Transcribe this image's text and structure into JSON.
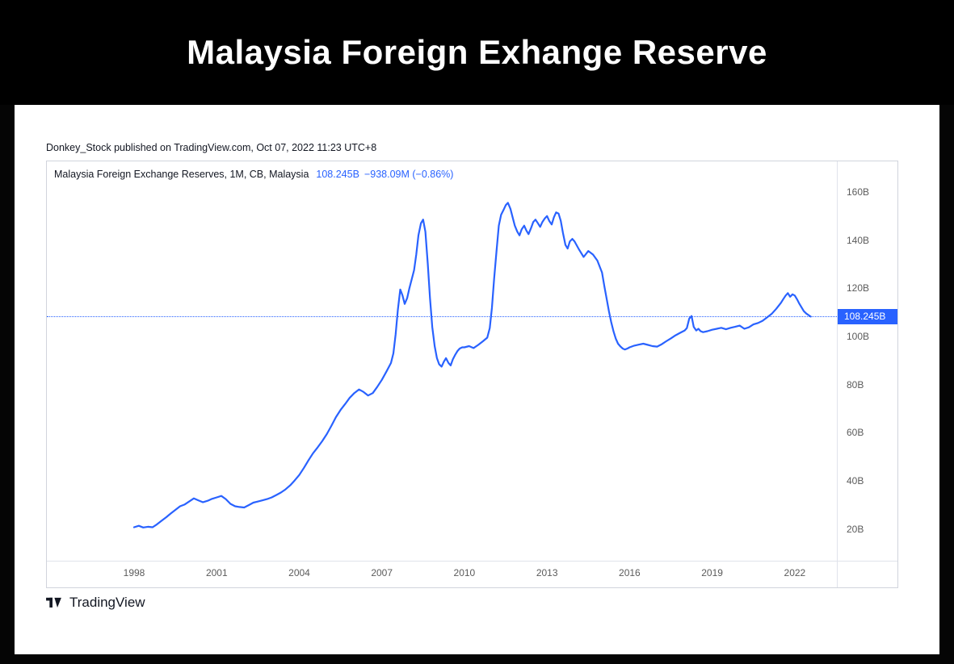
{
  "banner": {
    "title": "Malaysia Foreign Exhange Reserve"
  },
  "attribution": "Donkey_Stock published on TradingView.com, Oct 07, 2022 11:23 UTC+8",
  "legend": {
    "symbol": "Malaysia Foreign Exchange Reserves, 1M, CB, Malaysia",
    "value": "108.245B",
    "change": "−938.09M (−0.86%)"
  },
  "price_label": "108.245B",
  "footer": {
    "brand": "TradingView"
  },
  "colors": {
    "accent": "#2962FF",
    "line": "#2962FF",
    "banner_bg": "#000000",
    "text": "#131722",
    "axis_text": "#5b5b5b",
    "border": "#d1d4dc",
    "axis_separator": "#e0e3eb",
    "price_tag_bg": "#2962FF",
    "price_tag_text": "#ffffff"
  },
  "chart_data": {
    "type": "line",
    "title": "Malaysia Foreign Exchange Reserves, 1M, CB, Malaysia",
    "legend_position": "top-left",
    "y_axis_side": "right",
    "grid": false,
    "xlim": [
      1994.83,
      2023.53
    ],
    "ylim": [
      6.9,
      172.7
    ],
    "x_ticks": {
      "values": [
        1998,
        2001,
        2004,
        2007,
        2010,
        2013,
        2016,
        2019,
        2022
      ],
      "labels": [
        "1998",
        "2001",
        "2004",
        "2007",
        "2010",
        "2013",
        "2016",
        "2019",
        "2022"
      ]
    },
    "y_ticks": {
      "values": [
        160,
        140,
        120,
        100,
        80,
        60,
        40,
        20
      ],
      "labels": [
        "160B",
        "140B",
        "120B",
        "100B",
        "80B",
        "60B",
        "40B",
        "20B"
      ]
    },
    "last_value": 108.245,
    "last_value_label": "108.245B",
    "series": [
      {
        "name": "Malaysia Foreign Exchange Reserves",
        "points": [
          [
            1998.0,
            20.8
          ],
          [
            1998.17,
            21.4
          ],
          [
            1998.33,
            20.7
          ],
          [
            1998.5,
            21.0
          ],
          [
            1998.67,
            20.8
          ],
          [
            1998.83,
            22.0
          ],
          [
            1999.0,
            23.5
          ],
          [
            1999.17,
            25.0
          ],
          [
            1999.33,
            26.5
          ],
          [
            1999.5,
            28.0
          ],
          [
            1999.67,
            29.5
          ],
          [
            1999.83,
            30.2
          ],
          [
            2000.0,
            31.5
          ],
          [
            2000.17,
            32.8
          ],
          [
            2000.33,
            32.0
          ],
          [
            2000.5,
            31.2
          ],
          [
            2000.67,
            31.8
          ],
          [
            2000.83,
            32.6
          ],
          [
            2001.0,
            33.2
          ],
          [
            2001.17,
            33.8
          ],
          [
            2001.33,
            32.5
          ],
          [
            2001.5,
            30.5
          ],
          [
            2001.67,
            29.5
          ],
          [
            2001.83,
            29.2
          ],
          [
            2002.0,
            29.0
          ],
          [
            2002.17,
            30.0
          ],
          [
            2002.33,
            31.0
          ],
          [
            2002.5,
            31.5
          ],
          [
            2002.67,
            32.0
          ],
          [
            2002.83,
            32.5
          ],
          [
            2003.0,
            33.2
          ],
          [
            2003.17,
            34.2
          ],
          [
            2003.33,
            35.2
          ],
          [
            2003.5,
            36.5
          ],
          [
            2003.67,
            38.2
          ],
          [
            2003.83,
            40.2
          ],
          [
            2004.0,
            42.5
          ],
          [
            2004.17,
            45.5
          ],
          [
            2004.33,
            48.5
          ],
          [
            2004.5,
            51.5
          ],
          [
            2004.67,
            54.0
          ],
          [
            2004.83,
            56.5
          ],
          [
            2005.0,
            59.5
          ],
          [
            2005.17,
            63.0
          ],
          [
            2005.33,
            66.5
          ],
          [
            2005.5,
            69.5
          ],
          [
            2005.67,
            72.0
          ],
          [
            2005.83,
            74.5
          ],
          [
            2006.0,
            76.5
          ],
          [
            2006.17,
            78.0
          ],
          [
            2006.33,
            77.0
          ],
          [
            2006.5,
            75.5
          ],
          [
            2006.67,
            76.5
          ],
          [
            2006.83,
            79.0
          ],
          [
            2007.0,
            82.0
          ],
          [
            2007.17,
            85.5
          ],
          [
            2007.33,
            89.0
          ],
          [
            2007.42,
            93.0
          ],
          [
            2007.5,
            101.0
          ],
          [
            2007.58,
            111.0
          ],
          [
            2007.67,
            119.5
          ],
          [
            2007.75,
            117.0
          ],
          [
            2007.83,
            113.5
          ],
          [
            2007.92,
            116.0
          ],
          [
            2008.0,
            120.0
          ],
          [
            2008.08,
            123.5
          ],
          [
            2008.17,
            127.5
          ],
          [
            2008.25,
            134.0
          ],
          [
            2008.33,
            142.0
          ],
          [
            2008.42,
            147.0
          ],
          [
            2008.5,
            148.5
          ],
          [
            2008.58,
            143.5
          ],
          [
            2008.67,
            130.0
          ],
          [
            2008.75,
            116.0
          ],
          [
            2008.83,
            104.0
          ],
          [
            2008.92,
            96.0
          ],
          [
            2009.0,
            91.0
          ],
          [
            2009.08,
            88.5
          ],
          [
            2009.17,
            87.5
          ],
          [
            2009.25,
            89.5
          ],
          [
            2009.33,
            91.0
          ],
          [
            2009.42,
            89.0
          ],
          [
            2009.5,
            88.0
          ],
          [
            2009.58,
            90.5
          ],
          [
            2009.67,
            92.5
          ],
          [
            2009.75,
            94.0
          ],
          [
            2009.83,
            95.0
          ],
          [
            2009.92,
            95.5
          ],
          [
            2010.0,
            95.5
          ],
          [
            2010.17,
            96.0
          ],
          [
            2010.33,
            95.2
          ],
          [
            2010.5,
            96.5
          ],
          [
            2010.67,
            98.0
          ],
          [
            2010.83,
            99.5
          ],
          [
            2010.92,
            103.5
          ],
          [
            2011.0,
            112.0
          ],
          [
            2011.08,
            124.0
          ],
          [
            2011.17,
            136.0
          ],
          [
            2011.25,
            146.0
          ],
          [
            2011.33,
            150.5
          ],
          [
            2011.42,
            152.5
          ],
          [
            2011.5,
            154.5
          ],
          [
            2011.58,
            155.5
          ],
          [
            2011.67,
            153.0
          ],
          [
            2011.75,
            149.5
          ],
          [
            2011.83,
            146.0
          ],
          [
            2011.92,
            143.5
          ],
          [
            2012.0,
            142.0
          ],
          [
            2012.08,
            144.5
          ],
          [
            2012.17,
            146.0
          ],
          [
            2012.25,
            144.0
          ],
          [
            2012.33,
            142.5
          ],
          [
            2012.42,
            145.0
          ],
          [
            2012.5,
            147.5
          ],
          [
            2012.58,
            148.5
          ],
          [
            2012.67,
            147.0
          ],
          [
            2012.75,
            145.5
          ],
          [
            2012.83,
            147.5
          ],
          [
            2012.92,
            149.0
          ],
          [
            2013.0,
            150.0
          ],
          [
            2013.08,
            148.0
          ],
          [
            2013.17,
            146.5
          ],
          [
            2013.25,
            149.5
          ],
          [
            2013.33,
            151.5
          ],
          [
            2013.42,
            151.0
          ],
          [
            2013.5,
            148.0
          ],
          [
            2013.58,
            143.0
          ],
          [
            2013.67,
            138.0
          ],
          [
            2013.75,
            136.5
          ],
          [
            2013.83,
            139.5
          ],
          [
            2013.92,
            140.5
          ],
          [
            2014.0,
            139.5
          ],
          [
            2014.17,
            136.0
          ],
          [
            2014.33,
            133.0
          ],
          [
            2014.5,
            135.5
          ],
          [
            2014.67,
            134.0
          ],
          [
            2014.83,
            131.5
          ],
          [
            2015.0,
            126.5
          ],
          [
            2015.08,
            121.0
          ],
          [
            2015.17,
            115.5
          ],
          [
            2015.25,
            110.5
          ],
          [
            2015.33,
            106.0
          ],
          [
            2015.42,
            102.0
          ],
          [
            2015.5,
            99.0
          ],
          [
            2015.58,
            97.0
          ],
          [
            2015.67,
            95.8
          ],
          [
            2015.75,
            95.0
          ],
          [
            2015.83,
            94.6
          ],
          [
            2015.92,
            95.0
          ],
          [
            2016.0,
            95.5
          ],
          [
            2016.17,
            96.2
          ],
          [
            2016.33,
            96.6
          ],
          [
            2016.5,
            97.0
          ],
          [
            2016.67,
            96.5
          ],
          [
            2016.83,
            96.0
          ],
          [
            2017.0,
            95.8
          ],
          [
            2017.17,
            96.8
          ],
          [
            2017.33,
            98.0
          ],
          [
            2017.5,
            99.2
          ],
          [
            2017.67,
            100.5
          ],
          [
            2017.83,
            101.5
          ],
          [
            2018.0,
            102.5
          ],
          [
            2018.08,
            103.5
          ],
          [
            2018.17,
            107.5
          ],
          [
            2018.25,
            108.5
          ],
          [
            2018.33,
            104.0
          ],
          [
            2018.42,
            102.5
          ],
          [
            2018.5,
            103.2
          ],
          [
            2018.58,
            102.2
          ],
          [
            2018.67,
            101.8
          ],
          [
            2018.83,
            102.2
          ],
          [
            2019.0,
            102.8
          ],
          [
            2019.17,
            103.2
          ],
          [
            2019.33,
            103.6
          ],
          [
            2019.5,
            103.0
          ],
          [
            2019.67,
            103.6
          ],
          [
            2019.83,
            104.0
          ],
          [
            2020.0,
            104.5
          ],
          [
            2020.17,
            103.2
          ],
          [
            2020.33,
            103.8
          ],
          [
            2020.5,
            105.0
          ],
          [
            2020.67,
            105.6
          ],
          [
            2020.83,
            106.5
          ],
          [
            2021.0,
            108.0
          ],
          [
            2021.17,
            109.5
          ],
          [
            2021.33,
            111.5
          ],
          [
            2021.5,
            114.0
          ],
          [
            2021.58,
            115.5
          ],
          [
            2021.67,
            117.0
          ],
          [
            2021.75,
            118.0
          ],
          [
            2021.83,
            116.5
          ],
          [
            2021.92,
            117.5
          ],
          [
            2022.0,
            117.0
          ],
          [
            2022.08,
            115.5
          ],
          [
            2022.17,
            113.5
          ],
          [
            2022.25,
            112.0
          ],
          [
            2022.33,
            110.5
          ],
          [
            2022.42,
            109.5
          ],
          [
            2022.58,
            108.245
          ]
        ]
      }
    ]
  }
}
